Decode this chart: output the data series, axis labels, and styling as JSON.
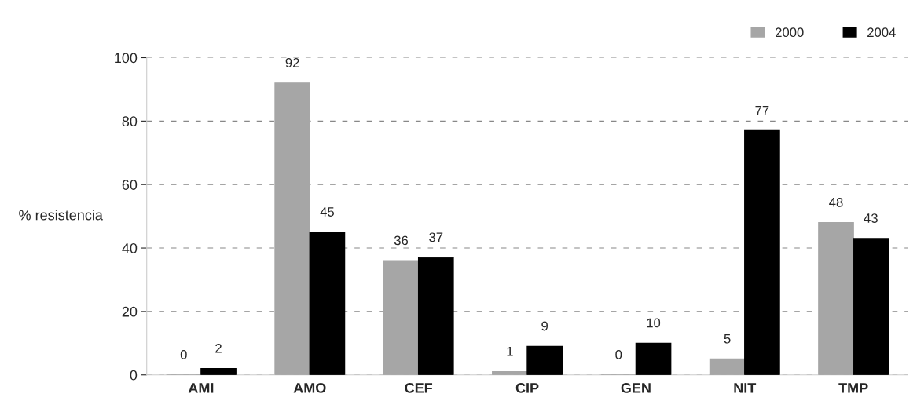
{
  "chart_data": {
    "type": "bar",
    "ylabel": "% resistencia",
    "categories": [
      "AMI",
      "AMO",
      "CEF",
      "CIP",
      "GEN",
      "NIT",
      "TMP"
    ],
    "series": [
      {
        "name": "2000",
        "color": "#a6a6a6",
        "values": [
          0,
          92,
          36,
          1,
          0,
          5,
          48
        ]
      },
      {
        "name": "2004",
        "color": "#000000",
        "values": [
          2,
          45,
          37,
          9,
          10,
          77,
          43
        ]
      }
    ],
    "ylim": [
      0,
      100
    ],
    "yticks": [
      0,
      20,
      40,
      60,
      80,
      100
    ],
    "grid": "y",
    "legend": "top right",
    "data_labels": true
  }
}
